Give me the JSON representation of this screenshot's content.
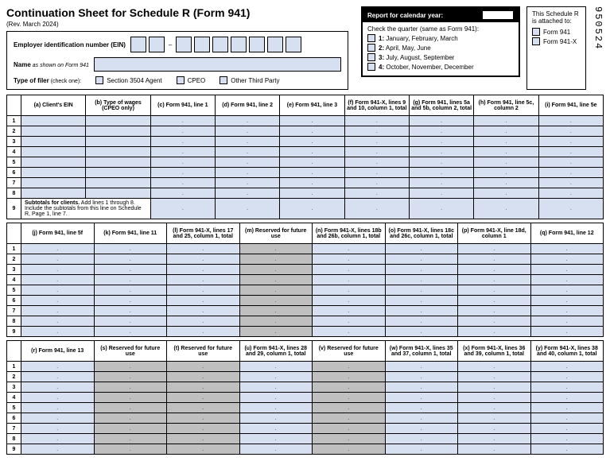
{
  "header": {
    "title": "Continuation Sheet for Schedule R (Form 941)",
    "rev": "(Rev. March 2024)",
    "side_number": "950524"
  },
  "employer": {
    "ein_label": "Employer identification number (EIN)",
    "name_label": "Name",
    "name_sub": " as shown on Form 941",
    "filer_label": "Type of filer",
    "filer_sub": " (check one):",
    "filer_options": [
      "Section 3504 Agent",
      "CPEO",
      "Other Third Party"
    ]
  },
  "report": {
    "header": "Report for calendar year:",
    "check_quarter": "Check the quarter (same as Form 941):",
    "quarters": [
      {
        "n": "1:",
        "t": "January, February, March"
      },
      {
        "n": "2:",
        "t": "April, May, June"
      },
      {
        "n": "3:",
        "t": "July, August, September"
      },
      {
        "n": "4:",
        "t": "October, November, December"
      }
    ]
  },
  "attach": {
    "title": "This Schedule R is attached to:",
    "options": [
      "Form 941",
      "Form 941-X"
    ]
  },
  "table1": {
    "headers": [
      "(a) Client's EIN",
      "(b) Type of wages (CPEO only)",
      "(c) Form 941, line 1",
      "(d) Form 941, line 2",
      "(e) Form 941, line 3",
      "(f) Form 941-X, lines 9 and 10, column 1, total",
      "(g) Form 941, lines 5a and 5b, column 2, total",
      "(h) Form 941, line 5c, column 2",
      "(i) Form 941, line 5e"
    ],
    "rows": 8,
    "subtotal_num": "9",
    "subtotal": "Subtotals for clients. Add lines 1 through 8. Include the subtotals from this line on Schedule R, Page 1, line 7."
  },
  "table2": {
    "headers": [
      "(j) Form 941, line 5f",
      "(k) Form 941, line 11",
      "(l) Form 941-X, lines 17 and 25, column 1, total",
      "(m) Reserved for future use",
      "(n) Form 941-X, lines 18b and 26b, column 1, total",
      "(o) Form 941-X, lines 18c and 26c, column 1, total",
      "(p) Form 941-X, line 18d, column 1",
      "(q) Form 941, line 12"
    ],
    "rows": 9,
    "gray_cols": [
      3
    ]
  },
  "table3": {
    "headers": [
      "(r) Form 941, line 13",
      "(s) Reserved for future use",
      "(t) Reserved for future use",
      "(u) Form 941-X, lines 28 and 29, column 1, total",
      "(v) Reserved for future use",
      "(w) Form 941-X, lines 35 and 37, column 1, total",
      "(x) Form 941-X, lines 36 and 39, column 1, total",
      "(y) Form 941-X, lines 38 and 40, column 1, total"
    ],
    "rows": 9,
    "gray_cols": [
      1,
      2,
      4
    ]
  },
  "placeholder": "."
}
